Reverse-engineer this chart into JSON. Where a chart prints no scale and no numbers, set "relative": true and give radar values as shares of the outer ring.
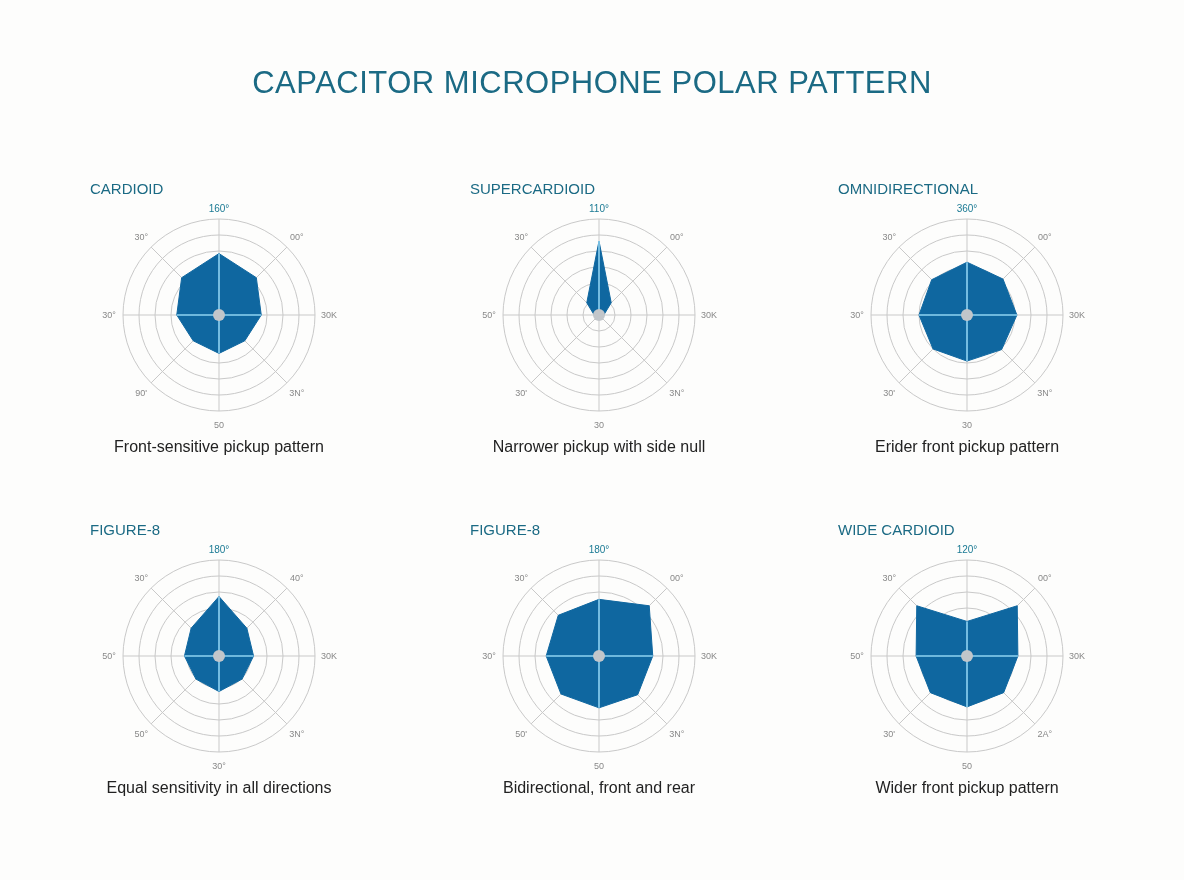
{
  "chart_data": [
    {
      "type": "other",
      "title": "CAPACITOR MICROPHONE POLAR PATTERN"
    },
    {
      "type": "radar",
      "title": "CARDIOID",
      "annotations": [
        "Front-sensitive pickup pattern"
      ],
      "relative": true,
      "grid": true,
      "categories": [
        "160°",
        "00°",
        "30K",
        "3N°",
        "50",
        "90'",
        "30°",
        "30°"
      ],
      "series": [
        {
          "color": "#0f67a0",
          "values": [
            0.64,
            0.55,
            0.44,
            0.38,
            0.4,
            0.38,
            0.44,
            0.55
          ]
        }
      ]
    },
    {
      "type": "radar",
      "title": "SUPERCARDIOID",
      "annotations": [
        "Narrower pickup with side null"
      ],
      "relative": true,
      "grid": true,
      "categories": [
        "110°",
        "00°",
        "30K",
        "3N°",
        "30",
        "30'",
        "50°",
        "30°"
      ],
      "series": [
        {
          "color": "#0f67a0",
          "values": [
            0.77,
            0.18,
            0.05,
            0.04,
            0.04,
            0.04,
            0.05,
            0.18
          ]
        }
      ]
    },
    {
      "type": "radar",
      "title": "OMNIDIRECTIONAL",
      "annotations": [
        "Erider front pickup pattern"
      ],
      "relative": true,
      "grid": true,
      "categories": [
        "360°",
        "00°",
        "30K",
        "3N°",
        "30",
        "30'",
        "30°",
        "30°"
      ],
      "series": [
        {
          "color": "#0f67a0",
          "values": [
            0.55,
            0.53,
            0.52,
            0.51,
            0.48,
            0.5,
            0.5,
            0.52
          ]
        }
      ]
    },
    {
      "type": "radar",
      "title": "FIGURE-8",
      "annotations": [
        "Equal sensitivity in all directions"
      ],
      "relative": true,
      "grid": true,
      "categories": [
        "180°",
        "40°",
        "30K",
        "3N°",
        "30°",
        "50°",
        "50°",
        "30°"
      ],
      "series": [
        {
          "color": "#0f67a0",
          "values": [
            0.62,
            0.41,
            0.36,
            0.34,
            0.37,
            0.34,
            0.36,
            0.41
          ]
        }
      ]
    },
    {
      "type": "radar",
      "title": "FIGURE-8",
      "annotations": [
        "Bidirectional, front and rear"
      ],
      "relative": true,
      "grid": true,
      "categories": [
        "180°",
        "00°",
        "30K",
        "3N°",
        "50",
        "50'",
        "30°",
        "30°"
      ],
      "series": [
        {
          "color": "#0f67a0",
          "values": [
            0.59,
            0.74,
            0.56,
            0.57,
            0.54,
            0.56,
            0.55,
            0.6
          ]
        }
      ]
    },
    {
      "type": "radar",
      "title": "WIDE CARDIOID",
      "annotations": [
        "Wider front pickup pattern"
      ],
      "relative": true,
      "grid": true,
      "categories": [
        "120°",
        "00°",
        "30K",
        "2A°",
        "50",
        "30'",
        "50°",
        "30°"
      ],
      "series": [
        {
          "color": "#0f67a0",
          "values": [
            0.36,
            0.74,
            0.53,
            0.54,
            0.53,
            0.54,
            0.53,
            0.74
          ]
        }
      ]
    }
  ]
}
